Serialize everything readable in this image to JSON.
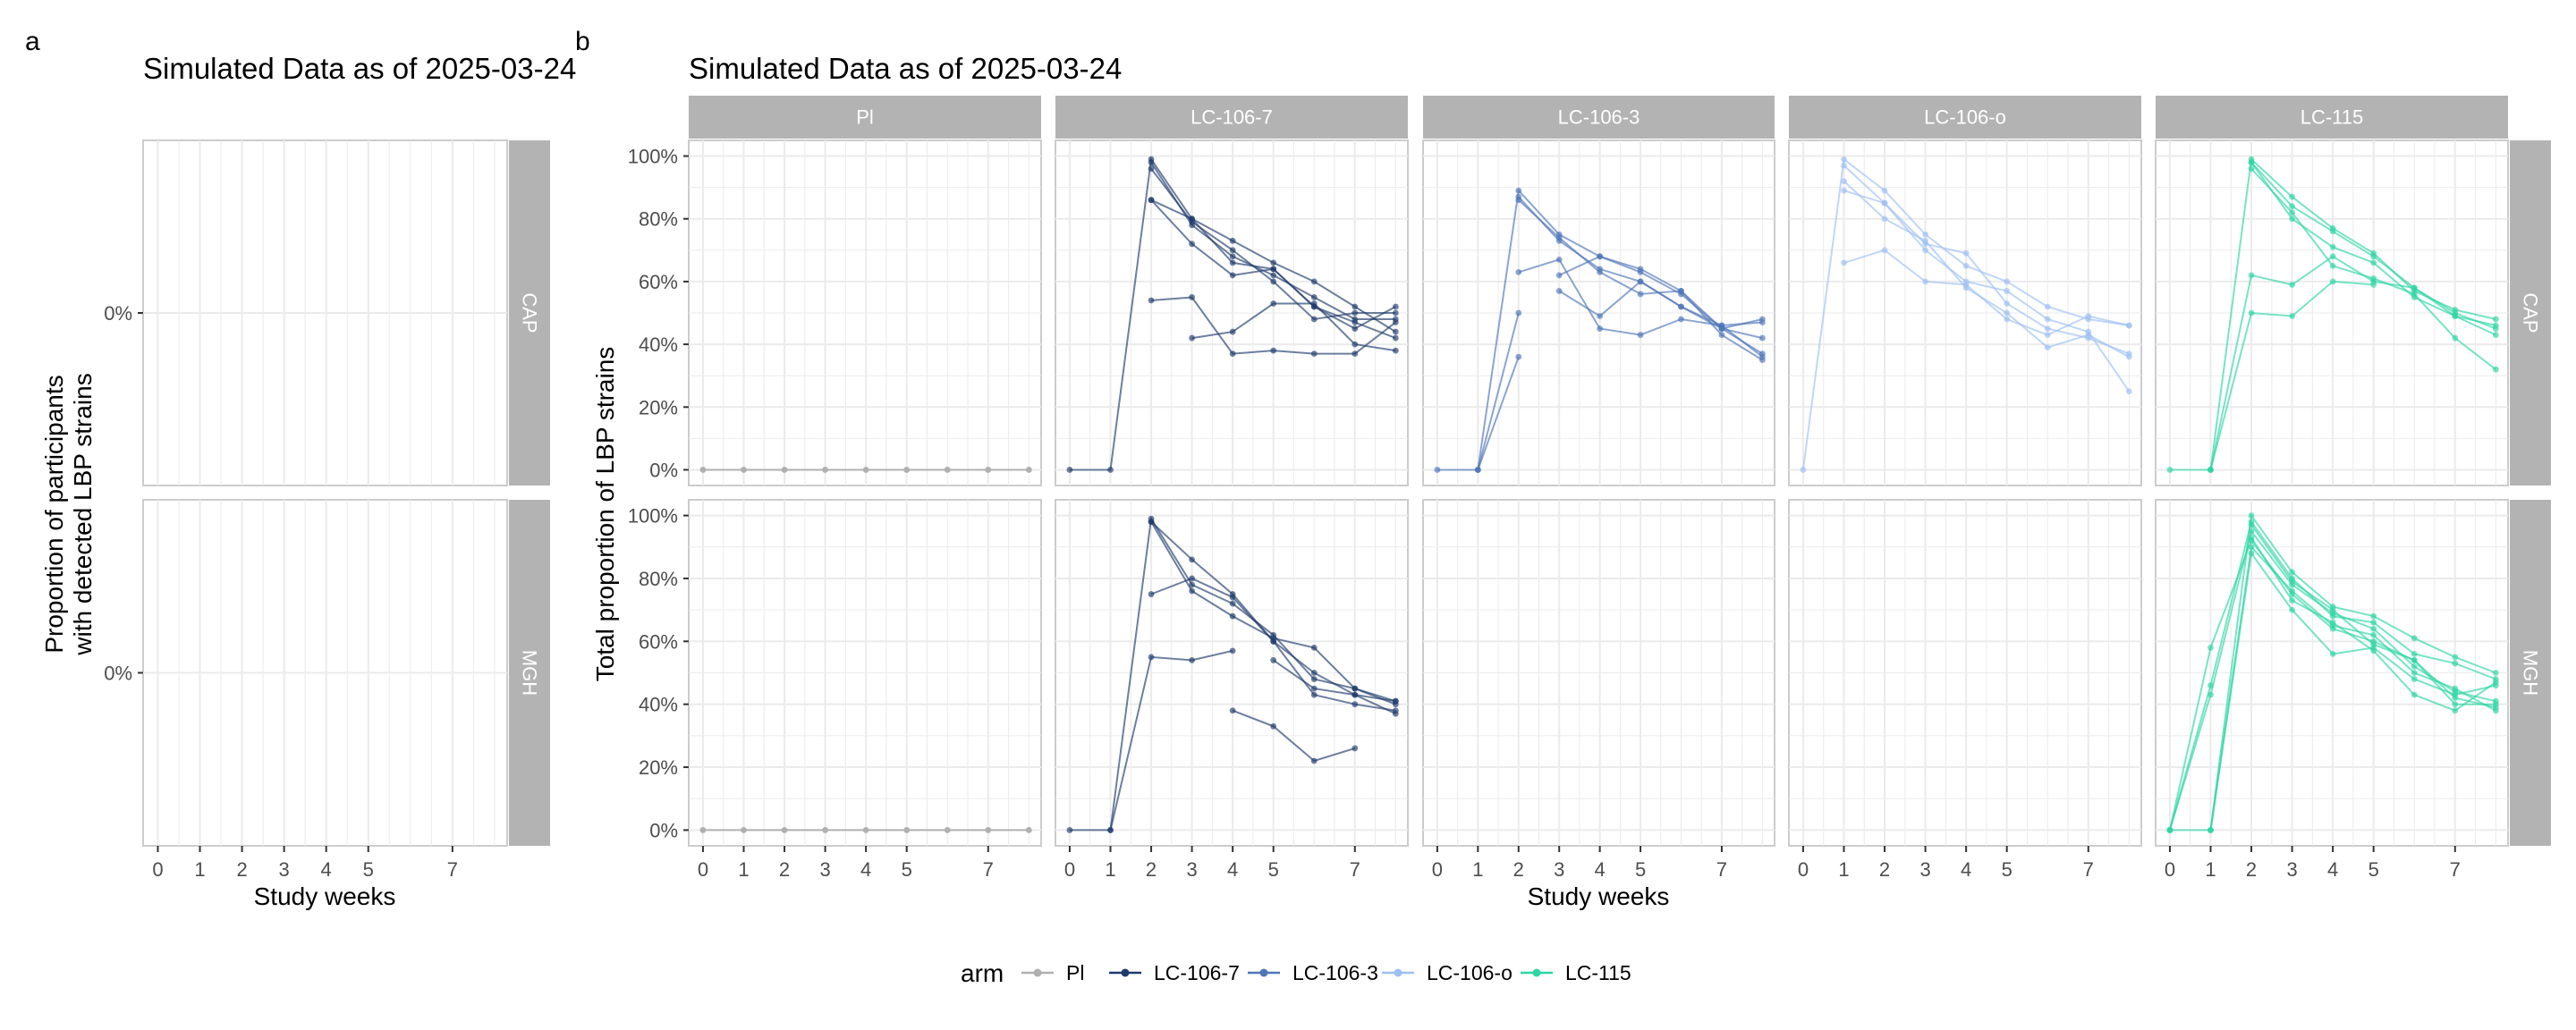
{
  "panel_labels": {
    "a": "a",
    "b": "b"
  },
  "colors": {
    "Pl": "#b0b0b0",
    "LC-106-7": "#1f3a6b",
    "LC-106-3": "#4f74b8",
    "LC-106-o": "#9ec0f2",
    "LC-115": "#2ed6a3",
    "strip": "#b3b3b3",
    "grid": "#ebebeb",
    "panel_border": "#cccccc"
  },
  "legend": {
    "title": "arm",
    "items": [
      "Pl",
      "LC-106-7",
      "LC-106-3",
      "LC-106-o",
      "LC-115"
    ]
  },
  "chart_data": [
    {
      "type": "line",
      "id": "a",
      "title": "Simulated Data as of 2025-03-24",
      "xlabel": "Study weeks",
      "ylabel_lines": [
        "Proportion of participants",
        "with detected LBP strains"
      ],
      "x_ticks": [
        0,
        1,
        2,
        3,
        4,
        5,
        7
      ],
      "xlim": [
        -0.35,
        8.3
      ],
      "y_tick_labels": [
        "0%"
      ],
      "row_facets": [
        "CAP",
        "MGH"
      ],
      "grid": true,
      "series": []
    },
    {
      "type": "line",
      "id": "b",
      "title": "Simulated Data as of 2025-03-24",
      "xlabel": "Study weeks",
      "ylabel": "Total proportion of LBP strains",
      "x_ticks": [
        0,
        1,
        2,
        3,
        4,
        5,
        7
      ],
      "xlim": [
        -0.35,
        8.3
      ],
      "y_ticks": [
        0,
        20,
        40,
        60,
        80,
        100
      ],
      "y_tick_labels": [
        "0%",
        "20%",
        "40%",
        "60%",
        "80%",
        "100%"
      ],
      "ylim": [
        -5,
        105
      ],
      "col_facets": [
        "Pl",
        "LC-106-7",
        "LC-106-3",
        "LC-106-o",
        "LC-115"
      ],
      "row_facets": [
        "CAP",
        "MGH"
      ],
      "grid": true,
      "legend_position": "bottom",
      "series": [
        {
          "facet": [
            "Pl",
            "CAP"
          ],
          "x": [
            0,
            1,
            2,
            3,
            4,
            5,
            6,
            7,
            8
          ],
          "y": [
            0,
            0,
            0,
            0,
            0,
            0,
            0,
            0,
            0
          ]
        },
        {
          "facet": [
            "Pl",
            "MGH"
          ],
          "x": [
            0,
            1,
            2,
            3,
            4,
            5,
            6,
            7,
            8
          ],
          "y": [
            0,
            0,
            0,
            0,
            0,
            0,
            0,
            0,
            0
          ]
        },
        {
          "facet": [
            "LC-106-7",
            "CAP"
          ],
          "x": [
            0,
            1,
            2,
            3,
            4,
            5,
            6,
            7,
            8
          ],
          "y": [
            0,
            0,
            99,
            80,
            73,
            66,
            60,
            52,
            44
          ]
        },
        {
          "facet": [
            "LC-106-7",
            "CAP"
          ],
          "x": [
            2,
            3,
            4,
            5,
            6,
            7,
            8
          ],
          "y": [
            98,
            78,
            68,
            62,
            55,
            48,
            48
          ]
        },
        {
          "facet": [
            "LC-106-7",
            "CAP"
          ],
          "x": [
            2,
            3,
            4,
            5,
            6,
            7,
            8
          ],
          "y": [
            96,
            79,
            70,
            60,
            48,
            50,
            50
          ]
        },
        {
          "facet": [
            "LC-106-7",
            "CAP"
          ],
          "x": [
            2,
            3,
            4,
            5,
            6,
            7,
            8
          ],
          "y": [
            86,
            72,
            62,
            64,
            52,
            47,
            42
          ]
        },
        {
          "facet": [
            "LC-106-7",
            "CAP"
          ],
          "x": [
            2,
            3,
            4,
            5,
            6,
            7,
            8
          ],
          "y": [
            86,
            80,
            66,
            64,
            52,
            45,
            52
          ]
        },
        {
          "facet": [
            "LC-106-7",
            "CAP"
          ],
          "x": [
            2,
            3,
            4,
            5,
            6,
            7,
            8
          ],
          "y": [
            54,
            55,
            37,
            38,
            37,
            37,
            47
          ]
        },
        {
          "facet": [
            "LC-106-7",
            "CAP"
          ],
          "x": [
            3,
            4,
            5,
            6,
            7,
            8
          ],
          "y": [
            42,
            44,
            53,
            53,
            40,
            38
          ]
        },
        {
          "facet": [
            "LC-106-7",
            "MGH"
          ],
          "x": [
            0,
            1,
            2,
            3,
            4,
            5,
            6,
            7,
            8
          ],
          "y": [
            0,
            0,
            99,
            78,
            72,
            62,
            48,
            45,
            40
          ]
        },
        {
          "facet": [
            "LC-106-7",
            "MGH"
          ],
          "x": [
            2,
            3,
            4,
            5,
            6,
            7,
            8
          ],
          "y": [
            98,
            86,
            75,
            60,
            50,
            43,
            37
          ]
        },
        {
          "facet": [
            "LC-106-7",
            "MGH"
          ],
          "x": [
            2,
            3,
            4,
            5,
            6,
            7,
            8
          ],
          "y": [
            98,
            76,
            68,
            61,
            58,
            45,
            41
          ]
        },
        {
          "facet": [
            "LC-106-7",
            "MGH"
          ],
          "x": [
            1,
            2,
            3,
            4
          ],
          "y": [
            0,
            55,
            54,
            57
          ]
        },
        {
          "facet": [
            "LC-106-7",
            "MGH"
          ],
          "x": [
            2,
            3,
            4,
            5,
            6,
            7,
            8
          ],
          "y": [
            75,
            80,
            74,
            60,
            43,
            40,
            38
          ]
        },
        {
          "facet": [
            "LC-106-7",
            "MGH"
          ],
          "x": [
            4,
            5,
            6,
            7
          ],
          "y": [
            38,
            33,
            22,
            26
          ]
        },
        {
          "facet": [
            "LC-106-7",
            "MGH"
          ],
          "x": [
            5,
            6,
            7,
            8
          ],
          "y": [
            54,
            45,
            43,
            41
          ]
        },
        {
          "facet": [
            "LC-106-3",
            "CAP"
          ],
          "x": [
            0,
            1,
            2,
            3,
            4,
            5,
            6,
            7,
            8
          ],
          "y": [
            0,
            0,
            89,
            75,
            68,
            63,
            56,
            45,
            42
          ]
        },
        {
          "facet": [
            "LC-106-3",
            "CAP"
          ],
          "x": [
            2,
            3,
            4,
            5,
            6,
            7,
            8
          ],
          "y": [
            87,
            73,
            64,
            60,
            52,
            46,
            36
          ]
        },
        {
          "facet": [
            "LC-106-3",
            "CAP"
          ],
          "x": [
            2,
            3,
            4,
            5,
            6,
            7,
            8
          ],
          "y": [
            86,
            74,
            63,
            56,
            57,
            43,
            35
          ]
        },
        {
          "facet": [
            "LC-106-3",
            "CAP"
          ],
          "x": [
            2,
            3,
            4,
            5,
            6,
            7,
            8
          ],
          "y": [
            63,
            67,
            45,
            43,
            48,
            46,
            47
          ]
        },
        {
          "facet": [
            "LC-106-3",
            "CAP"
          ],
          "x": [
            1,
            2
          ],
          "y": [
            0,
            50
          ]
        },
        {
          "facet": [
            "LC-106-3",
            "CAP"
          ],
          "x": [
            1,
            2
          ],
          "y": [
            0,
            36
          ]
        },
        {
          "facet": [
            "LC-106-3",
            "CAP"
          ],
          "x": [
            3,
            4,
            5,
            6,
            7,
            8
          ],
          "y": [
            57,
            49,
            60,
            52,
            45,
            48
          ]
        },
        {
          "facet": [
            "LC-106-3",
            "CAP"
          ],
          "x": [
            3,
            4,
            5,
            6,
            7,
            8
          ],
          "y": [
            62,
            68,
            64,
            57,
            45,
            37
          ]
        },
        {
          "facet": [
            "LC-106-o",
            "CAP"
          ],
          "x": [
            0,
            1,
            2,
            3,
            4,
            5,
            6,
            7,
            8
          ],
          "y": [
            0,
            99,
            89,
            75,
            65,
            60,
            52,
            48,
            46
          ]
        },
        {
          "facet": [
            "LC-106-o",
            "CAP"
          ],
          "x": [
            1,
            2,
            3,
            4,
            5,
            6,
            7,
            8
          ],
          "y": [
            97,
            85,
            72,
            69,
            53,
            45,
            42,
            37
          ]
        },
        {
          "facet": [
            "LC-106-o",
            "CAP"
          ],
          "x": [
            1,
            2,
            3,
            4,
            5,
            6,
            7,
            8
          ],
          "y": [
            92,
            80,
            73,
            58,
            50,
            39,
            43,
            36
          ]
        },
        {
          "facet": [
            "LC-106-o",
            "CAP"
          ],
          "x": [
            1,
            2,
            3,
            4,
            5,
            6,
            7,
            8
          ],
          "y": [
            66,
            70,
            60,
            59,
            48,
            43,
            49,
            46
          ]
        },
        {
          "facet": [
            "LC-106-o",
            "CAP"
          ],
          "x": [
            1,
            2,
            3,
            4,
            5,
            6,
            7,
            8
          ],
          "y": [
            89,
            85,
            70,
            60,
            57,
            48,
            44,
            25
          ]
        },
        {
          "facet": [
            "LC-115",
            "CAP"
          ],
          "x": [
            0,
            1,
            2,
            3,
            4,
            5,
            6,
            7,
            8
          ],
          "y": [
            0,
            0,
            99,
            87,
            77,
            69,
            57,
            51,
            48
          ]
        },
        {
          "facet": [
            "LC-115",
            "CAP"
          ],
          "x": [
            2,
            3,
            4,
            5,
            6,
            7,
            8
          ],
          "y": [
            98,
            84,
            76,
            68,
            58,
            49,
            46
          ]
        },
        {
          "facet": [
            "LC-115",
            "CAP"
          ],
          "x": [
            2,
            3,
            4,
            5,
            6,
            7,
            8
          ],
          "y": [
            98,
            80,
            71,
            66,
            55,
            49,
            43
          ]
        },
        {
          "facet": [
            "LC-115",
            "CAP"
          ],
          "x": [
            1,
            2,
            3,
            4,
            5,
            6,
            7,
            8
          ],
          "y": [
            0,
            62,
            59,
            68,
            60,
            58,
            50,
            45
          ]
        },
        {
          "facet": [
            "LC-115",
            "CAP"
          ],
          "x": [
            1,
            2,
            3,
            4,
            5
          ],
          "y": [
            0,
            50,
            49,
            60,
            59
          ]
        },
        {
          "facet": [
            "LC-115",
            "CAP"
          ],
          "x": [
            2,
            3,
            4,
            5,
            6,
            7,
            8
          ],
          "y": [
            96,
            82,
            65,
            61,
            56,
            42,
            32
          ]
        },
        {
          "facet": [
            "LC-115",
            "MGH"
          ],
          "x": [
            0,
            1,
            2,
            3,
            4,
            5,
            6,
            7,
            8
          ],
          "y": [
            0,
            0,
            100,
            82,
            71,
            68,
            61,
            55,
            50
          ]
        },
        {
          "facet": [
            "LC-115",
            "MGH"
          ],
          "x": [
            0,
            1,
            2,
            3,
            4,
            5,
            6,
            7,
            8
          ],
          "y": [
            0,
            46,
            98,
            80,
            68,
            66,
            56,
            53,
            48
          ]
        },
        {
          "facet": [
            "LC-115",
            "MGH"
          ],
          "x": [
            0,
            1,
            2,
            3,
            4,
            5,
            6,
            7,
            8
          ],
          "y": [
            0,
            43,
            95,
            78,
            69,
            64,
            52,
            44,
            41
          ]
        },
        {
          "facet": [
            "LC-115",
            "MGH"
          ],
          "x": [
            0,
            1,
            2,
            3,
            4,
            5,
            6,
            7,
            8
          ],
          "y": [
            0,
            58,
            92,
            75,
            64,
            60,
            54,
            42,
            39
          ]
        },
        {
          "facet": [
            "LC-115",
            "MGH"
          ],
          "x": [
            1,
            2,
            3,
            4,
            5,
            6,
            7,
            8
          ],
          "y": [
            0,
            90,
            76,
            65,
            62,
            50,
            45,
            38
          ]
        },
        {
          "facet": [
            "LC-115",
            "MGH"
          ],
          "x": [
            1,
            2,
            3,
            4,
            5,
            6,
            7,
            8
          ],
          "y": [
            0,
            88,
            70,
            56,
            58,
            48,
            43,
            46
          ]
        },
        {
          "facet": [
            "LC-115",
            "MGH"
          ],
          "x": [
            2,
            3,
            4,
            5,
            6,
            7,
            8
          ],
          "y": [
            93,
            73,
            66,
            57,
            43,
            38,
            47
          ]
        },
        {
          "facet": [
            "LC-115",
            "MGH"
          ],
          "x": [
            2,
            3,
            4,
            5,
            6,
            7,
            8
          ],
          "y": [
            97,
            79,
            70,
            59,
            54,
            40,
            40
          ]
        }
      ]
    }
  ]
}
